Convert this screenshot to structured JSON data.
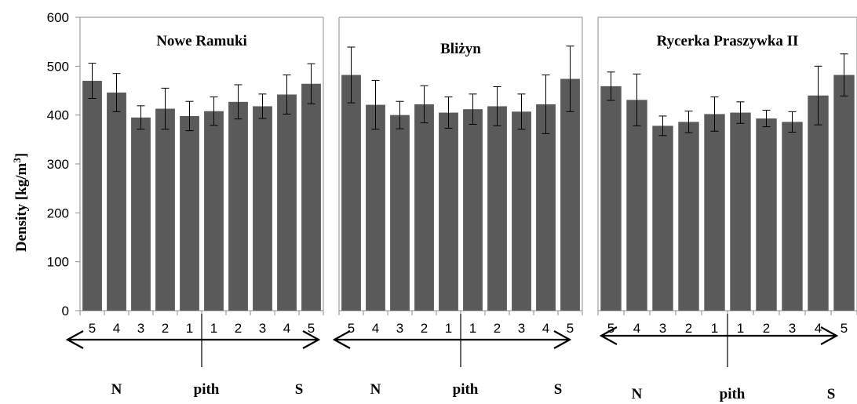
{
  "chart_data": {
    "type": "bar",
    "ylabel": "Density [kg/m",
    "ylabel_sup": "3",
    "ylabel_end": "]",
    "ylim": [
      0,
      600
    ],
    "yticks": [
      0,
      100,
      200,
      300,
      400,
      500,
      600
    ],
    "grid": false,
    "bar_color": "#5a5a5a",
    "categories": [
      "5",
      "4",
      "3",
      "2",
      "1",
      "1",
      "2",
      "3",
      "4",
      "5"
    ],
    "direction_labels": {
      "left": "N",
      "center": "pith",
      "right": "S"
    },
    "panels": [
      {
        "title": "Nowe Ramuki",
        "values": [
          470,
          446,
          395,
          413,
          398,
          408,
          427,
          418,
          442,
          464
        ],
        "errors": [
          36,
          39,
          24,
          42,
          30,
          29,
          35,
          25,
          40,
          41
        ]
      },
      {
        "title": "Bliżyn",
        "values": [
          482,
          421,
          400,
          422,
          405,
          412,
          418,
          407,
          422,
          474
        ],
        "errors": [
          57,
          50,
          28,
          38,
          32,
          31,
          40,
          36,
          60,
          67
        ]
      },
      {
        "title": "Rycerka Praszywka II",
        "values": [
          459,
          431,
          378,
          386,
          402,
          405,
          393,
          386,
          440,
          482
        ],
        "errors": [
          29,
          53,
          20,
          22,
          35,
          22,
          17,
          21,
          60,
          43
        ]
      }
    ]
  }
}
